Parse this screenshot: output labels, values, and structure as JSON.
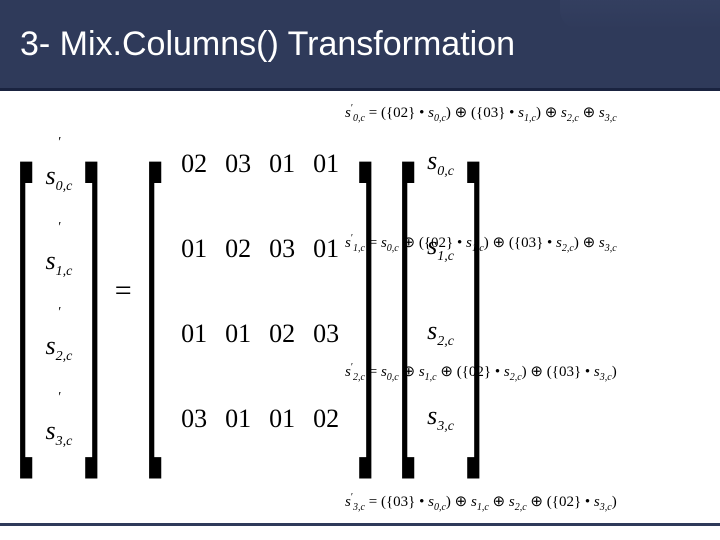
{
  "title": "3- Mix.Columns() Transformation",
  "colors": {
    "header_bg": "#2f3a5a",
    "header_text": "#ffffff",
    "body_bg": "#ffffff",
    "text": "#000000",
    "footer_line": "#2f3a5a"
  },
  "left_vector_prime": [
    "s′_{0,c}",
    "s′_{1,c}",
    "s′_{2,c}",
    "s′_{3,c}"
  ],
  "left_vec_rows": [
    {
      "base": "s",
      "row": "0",
      "col": "c"
    },
    {
      "base": "s",
      "row": "1",
      "col": "c"
    },
    {
      "base": "s",
      "row": "2",
      "col": "c"
    },
    {
      "base": "s",
      "row": "3",
      "col": "c"
    }
  ],
  "mix_matrix": [
    [
      "02",
      "03",
      "01",
      "01"
    ],
    [
      "01",
      "02",
      "03",
      "01"
    ],
    [
      "01",
      "01",
      "02",
      "03"
    ],
    [
      "03",
      "01",
      "01",
      "02"
    ]
  ],
  "right_vec_rows": [
    {
      "base": "s",
      "row": "0",
      "col": "c"
    },
    {
      "base": "s",
      "row": "1",
      "col": "c"
    },
    {
      "base": "s",
      "row": "2",
      "col": "c"
    },
    {
      "base": "s",
      "row": "3",
      "col": "c"
    }
  ],
  "equations": [
    "s′_{0,c} = ({02} • s_{0,c}) ⊕ ({03} • s_{1,c}) ⊕ s_{2,c} ⊕ s_{3,c}",
    "s′_{1,c} = s_{0,c} ⊕ ({02} • s_{1,c}) ⊕ ({03} • s_{2,c}) ⊕ s_{3,c}",
    "s′_{2,c} = s_{0,c} ⊕ s_{1,c} ⊕ ({02} • s_{2,c}) ⊕ ({03} • s_{3,c})",
    "s′_{3,c} = ({03} • s_{0,c}) ⊕ s_{1,c} ⊕ s_{2,c} ⊕ ({02} • s_{3,c})"
  ],
  "m": {
    "r0c0": "02",
    "r0c1": "03",
    "r0c2": "01",
    "r0c3": "01",
    "r1c0": "01",
    "r1c1": "02",
    "r1c2": "03",
    "r1c3": "01",
    "r2c0": "01",
    "r2c1": "01",
    "r2c2": "02",
    "r2c3": "03",
    "r3c0": "03",
    "r3c1": "01",
    "r3c2": "01",
    "r3c3": "02"
  },
  "lv": {
    "r0": "0,c",
    "r1": "1,c",
    "r2": "2,c",
    "r3": "3,c"
  },
  "rv": {
    "r0": "0,c",
    "r1": "1,c",
    "r2": "2,c",
    "r3": "3,c"
  },
  "eq_html": {
    "e0_lhs_sub": "0,c",
    "e1_lhs_sub": "1,c",
    "e2_lhs_sub": "2,c",
    "e3_lhs_sub": "3,c"
  },
  "sym": {
    "s": "s",
    "eq": "=",
    "lpar": "(",
    "rpar": ")",
    "lbrace": "{",
    "rbrace": "}",
    "dot": "•",
    "xor": "⊕",
    "c02": "02",
    "c03": "03"
  }
}
